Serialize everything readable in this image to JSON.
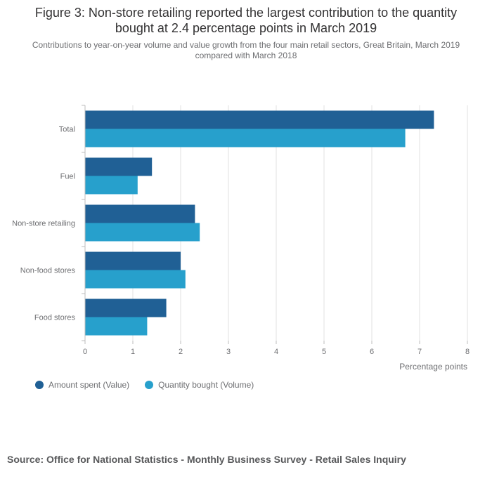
{
  "title": "Figure 3: Non-store retailing reported the largest contribution to the quantity bought at 2.4 percentage points in March 2019",
  "subtitle": "Contributions to year-on-year volume and value growth from the four main retail sectors, Great Britain, March 2019 compared with March 2018",
  "source": "Source: Office for National Statistics - Monthly Business Survey - Retail Sales Inquiry",
  "colors": {
    "value": "#206095",
    "volume": "#27a0cc",
    "grid": "#e2e2e2",
    "axis": "#bcbcbc"
  },
  "chart_data": {
    "type": "bar",
    "orientation": "horizontal",
    "categories": [
      "Total",
      "Fuel",
      "Non-store retailing",
      "Non-food stores",
      "Food stores"
    ],
    "series": [
      {
        "name": "Amount spent (Value)",
        "values": [
          7.3,
          1.4,
          2.3,
          2.0,
          1.7
        ]
      },
      {
        "name": "Quantity bought (Volume)",
        "values": [
          6.7,
          1.1,
          2.4,
          2.1,
          1.3
        ]
      }
    ],
    "xlabel": "Percentage points",
    "xlim": [
      0,
      8
    ],
    "xticks": [
      "0",
      "1",
      "2",
      "3",
      "4",
      "5",
      "6",
      "7",
      "8"
    ],
    "grid": true,
    "legend": "bottom-left"
  }
}
